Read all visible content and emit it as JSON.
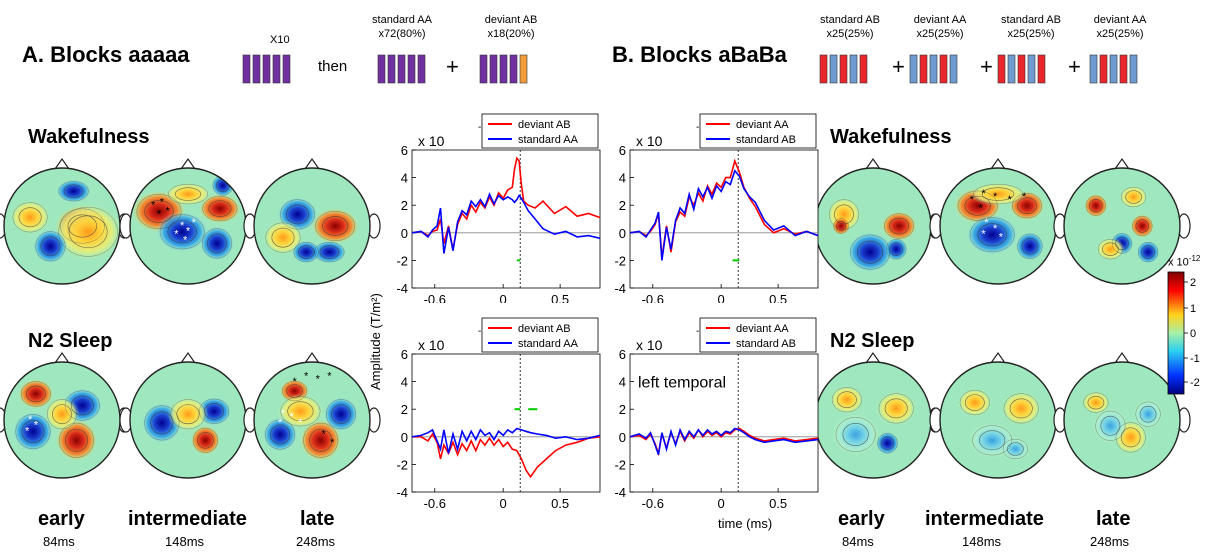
{
  "panel_a": {
    "title": "A. Blocks aaaaa",
    "x10_label": "X10",
    "then_label": "then",
    "standard": {
      "name": "standard AA",
      "count": "x72(80%)"
    },
    "deviant": {
      "name": "deviant AB",
      "count": "x18(20%)"
    },
    "plus": "+",
    "wake_label": "Wakefulness",
    "sleep_label": "N2 Sleep",
    "time_labels": [
      {
        "name": "early",
        "ms": "84ms"
      },
      {
        "name": "intermediate",
        "ms": "148ms"
      },
      {
        "name": "late",
        "ms": "248ms"
      }
    ]
  },
  "panel_b": {
    "title": "B. Blocks aBaBa",
    "groups": [
      {
        "name": "standard AB",
        "count": "x25(25%)"
      },
      {
        "name": "deviant AA",
        "count": "x25(25%)"
      },
      {
        "name": "standard AB",
        "count": "x25(25%)"
      },
      {
        "name": "deviant AA",
        "count": "x25(25%)"
      }
    ],
    "plus": "+",
    "wake_label": "Wakefulness",
    "sleep_label": "N2 Sleep",
    "time_labels": [
      {
        "name": "early",
        "ms": "84ms"
      },
      {
        "name": "intermediate",
        "ms": "148ms"
      },
      {
        "name": "late",
        "ms": "248ms"
      }
    ]
  },
  "colorbar": {
    "label": "x 10",
    "exponent": "-12",
    "ticks": [
      "2",
      "1",
      "0",
      "-1",
      "-2"
    ]
  },
  "colors": {
    "purple": "#7030a0",
    "orange": "#f39c3c",
    "red": "#e8262b",
    "blue": "#6f9bd1",
    "trace_red": "#ff0000",
    "trace_blue": "#0000ff",
    "sig_green": "#00cc00"
  },
  "shared_axis": {
    "ylabel": "Amplitude (T/m²)",
    "xlabel": "time (ms)"
  },
  "chart_data": [
    {
      "type": "line",
      "id": "A-wake",
      "scale_label": "x 10",
      "scale_exp": "-12",
      "legend": [
        "deviant AB",
        "standard AA"
      ],
      "xlim": [
        -0.8,
        0.85
      ],
      "ylim": [
        -4,
        6
      ],
      "xticks": [
        "-0.6",
        "0",
        "0.5"
      ],
      "yticks": [
        "6",
        "4",
        "2",
        "0",
        "-2",
        "-4"
      ],
      "x": [
        -0.8,
        -0.72,
        -0.66,
        -0.62,
        -0.58,
        -0.55,
        -0.52,
        -0.48,
        -0.44,
        -0.4,
        -0.36,
        -0.32,
        -0.28,
        -0.24,
        -0.2,
        -0.16,
        -0.12,
        -0.08,
        -0.04,
        0.0,
        0.04,
        0.08,
        0.1,
        0.12,
        0.14,
        0.16,
        0.18,
        0.22,
        0.28,
        0.35,
        0.45,
        0.55,
        0.65,
        0.75,
        0.85
      ],
      "series": [
        {
          "name": "deviant AB",
          "color": "#ff0000",
          "values": [
            0.0,
            0.1,
            -0.2,
            0.1,
            0.2,
            1.0,
            -0.8,
            0.5,
            -1.2,
            0.6,
            1.4,
            1.0,
            2.0,
            1.5,
            2.2,
            1.8,
            2.6,
            2.0,
            2.9,
            2.5,
            3.1,
            3.3,
            4.6,
            5.4,
            5.2,
            3.5,
            2.3,
            2.0,
            1.8,
            2.3,
            1.4,
            1.9,
            1.2,
            1.4,
            1.1
          ]
        },
        {
          "name": "standard AA",
          "color": "#0000ff",
          "values": [
            0.0,
            0.1,
            -0.3,
            0.2,
            0.5,
            1.8,
            -1.5,
            0.4,
            -1.3,
            0.8,
            1.6,
            1.3,
            2.3,
            1.9,
            2.4,
            1.9,
            2.8,
            2.1,
            2.7,
            2.4,
            2.6,
            2.4,
            2.2,
            2.4,
            2.7,
            2.5,
            2.2,
            1.6,
            1.0,
            0.3,
            -0.1,
            0.1,
            -0.3,
            -0.2,
            -0.4
          ]
        }
      ],
      "sig_bars": [
        {
          "x": [
            0.12,
            0.15
          ],
          "y": -2
        }
      ]
    },
    {
      "type": "line",
      "id": "A-sleep",
      "scale_label": "x 10",
      "scale_exp": "-12",
      "legend": [
        "deviant AB",
        "standard AA"
      ],
      "xlim": [
        -0.8,
        0.85
      ],
      "ylim": [
        -4,
        6
      ],
      "xticks": [
        "-0.6",
        "0",
        "0.5"
      ],
      "yticks": [
        "6",
        "4",
        "2",
        "0",
        "-2",
        "-4"
      ],
      "x": [
        -0.8,
        -0.72,
        -0.66,
        -0.62,
        -0.58,
        -0.55,
        -0.52,
        -0.48,
        -0.44,
        -0.4,
        -0.36,
        -0.32,
        -0.28,
        -0.24,
        -0.2,
        -0.16,
        -0.12,
        -0.08,
        -0.04,
        0.0,
        0.04,
        0.08,
        0.12,
        0.16,
        0.2,
        0.24,
        0.3,
        0.38,
        0.46,
        0.55,
        0.65,
        0.75,
        0.85
      ],
      "series": [
        {
          "name": "deviant AB",
          "color": "#ff0000",
          "values": [
            0.0,
            0.0,
            -0.3,
            0.2,
            -0.4,
            -1.6,
            -0.6,
            -1.2,
            -0.4,
            -1.3,
            -0.5,
            -1.0,
            -0.3,
            -1.0,
            -0.2,
            -0.6,
            -0.1,
            -0.6,
            -0.2,
            -0.7,
            -0.4,
            -0.9,
            -1.0,
            -1.6,
            -2.4,
            -2.9,
            -2.2,
            -1.6,
            -1.0,
            -0.6,
            -0.4,
            -0.1,
            0.0
          ]
        },
        {
          "name": "standard AA",
          "color": "#0000ff",
          "values": [
            0.0,
            0.1,
            0.3,
            0.5,
            -0.3,
            -0.9,
            0.5,
            -1.2,
            0.2,
            -0.9,
            0.4,
            -0.3,
            0.4,
            -0.2,
            0.5,
            0.1,
            0.3,
            -0.2,
            0.4,
            0.1,
            0.5,
            0.3,
            0.6,
            0.5,
            0.4,
            0.3,
            0.2,
            0.1,
            -0.1,
            0.0,
            -0.2,
            -0.1,
            0.1
          ]
        }
      ],
      "sig_bars": [
        {
          "x": [
            0.1,
            0.15
          ],
          "y": 2
        },
        {
          "x": [
            0.22,
            0.3
          ],
          "y": 2
        }
      ]
    },
    {
      "type": "line",
      "id": "B-wake",
      "scale_label": "x 10",
      "scale_exp": "-12",
      "legend": [
        "deviant AA",
        "standard AB"
      ],
      "xlim": [
        -0.8,
        0.85
      ],
      "ylim": [
        -4,
        6
      ],
      "xticks": [
        "-0.6",
        "0",
        "0.5"
      ],
      "yticks": [
        "6",
        "4",
        "2",
        "0",
        "-2",
        "-4"
      ],
      "x": [
        -0.8,
        -0.72,
        -0.66,
        -0.62,
        -0.58,
        -0.55,
        -0.52,
        -0.48,
        -0.44,
        -0.4,
        -0.36,
        -0.32,
        -0.28,
        -0.24,
        -0.2,
        -0.16,
        -0.12,
        -0.08,
        -0.04,
        0.0,
        0.04,
        0.08,
        0.12,
        0.16,
        0.2,
        0.25,
        0.3,
        0.38,
        0.46,
        0.55,
        0.65,
        0.75,
        0.85
      ],
      "series": [
        {
          "name": "deviant AA",
          "color": "#ff0000",
          "values": [
            0.0,
            0.1,
            -0.2,
            0.1,
            0.6,
            1.4,
            -1.8,
            0.5,
            -1.4,
            0.8,
            1.5,
            1.2,
            2.6,
            2.0,
            2.9,
            2.3,
            3.4,
            2.8,
            3.6,
            3.3,
            4.0,
            4.0,
            5.2,
            4.4,
            3.3,
            2.5,
            1.9,
            0.6,
            0.0,
            0.3,
            -0.1,
            0.1,
            -0.2
          ]
        },
        {
          "name": "standard AB",
          "color": "#0000ff",
          "values": [
            0.0,
            0.1,
            -0.3,
            0.2,
            0.7,
            1.5,
            -2.0,
            0.4,
            -1.2,
            0.9,
            1.8,
            1.4,
            2.8,
            1.7,
            3.2,
            2.6,
            3.3,
            2.5,
            3.4,
            3.0,
            3.7,
            3.5,
            4.5,
            4.1,
            3.2,
            2.6,
            2.2,
            0.9,
            0.2,
            0.5,
            -0.2,
            0.1,
            -0.2
          ]
        }
      ],
      "sig_bars": [
        {
          "x": [
            0.1,
            0.16
          ],
          "y": -2
        }
      ]
    },
    {
      "type": "line",
      "id": "B-sleep",
      "scale_label": "x 10",
      "scale_exp": "-12",
      "legend": [
        "deviant AA",
        "standard AB"
      ],
      "annotation": "left temporal",
      "xlim": [
        -0.8,
        0.85
      ],
      "ylim": [
        -4,
        6
      ],
      "xticks": [
        "-0.6",
        "0",
        "0.5"
      ],
      "yticks": [
        "6",
        "4",
        "2",
        "0",
        "-2",
        "-4"
      ],
      "x": [
        -0.8,
        -0.72,
        -0.66,
        -0.62,
        -0.58,
        -0.55,
        -0.52,
        -0.48,
        -0.44,
        -0.4,
        -0.36,
        -0.32,
        -0.28,
        -0.24,
        -0.2,
        -0.16,
        -0.12,
        -0.08,
        -0.04,
        0.0,
        0.04,
        0.08,
        0.12,
        0.16,
        0.2,
        0.25,
        0.3,
        0.38,
        0.46,
        0.55,
        0.65,
        0.75,
        0.85
      ],
      "series": [
        {
          "name": "deviant AA",
          "color": "#ff0000",
          "values": [
            0.0,
            0.1,
            -0.2,
            0.2,
            -0.5,
            -1.2,
            0.2,
            -0.8,
            0.3,
            -0.5,
            0.4,
            -0.3,
            0.3,
            -0.1,
            0.5,
            0.0,
            0.4,
            0.1,
            0.3,
            0.0,
            0.3,
            0.2,
            0.5,
            0.6,
            0.4,
            0.1,
            -0.1,
            -0.3,
            -0.2,
            -0.1,
            -0.3,
            -0.2,
            -0.1
          ]
        },
        {
          "name": "standard AB",
          "color": "#0000ff",
          "values": [
            0.0,
            0.2,
            -0.1,
            0.3,
            -0.6,
            -1.3,
            0.3,
            -0.9,
            0.4,
            -0.6,
            0.5,
            -0.2,
            0.4,
            0.0,
            0.5,
            0.1,
            0.5,
            0.2,
            0.4,
            0.1,
            0.4,
            0.3,
            0.6,
            0.5,
            0.3,
            0.0,
            -0.2,
            -0.4,
            -0.3,
            -0.2,
            -0.4,
            -0.3,
            -0.2
          ]
        }
      ],
      "sig_bars": []
    }
  ]
}
